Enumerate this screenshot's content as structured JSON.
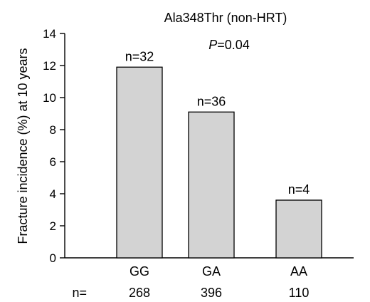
{
  "chart_data": {
    "type": "bar",
    "title": "Ala348Thr (non-HRT)",
    "annotation": {
      "p_italic": "P",
      "p_rest": "=0.04"
    },
    "ylabel": "Fracture incidence (%) at 10 years",
    "xlabel": "",
    "ylim": [
      0,
      14
    ],
    "yticks": [
      0,
      2,
      4,
      6,
      8,
      10,
      12,
      14
    ],
    "categories": [
      "GG",
      "GA",
      "AA"
    ],
    "values": [
      11.9,
      9.1,
      3.6
    ],
    "bar_labels": [
      "n=32",
      "n=36",
      "n=4"
    ],
    "n_row_label": "n=",
    "n_values": [
      "268",
      "396",
      "110"
    ],
    "bar_color": "#d3d3d3",
    "grid": false
  }
}
